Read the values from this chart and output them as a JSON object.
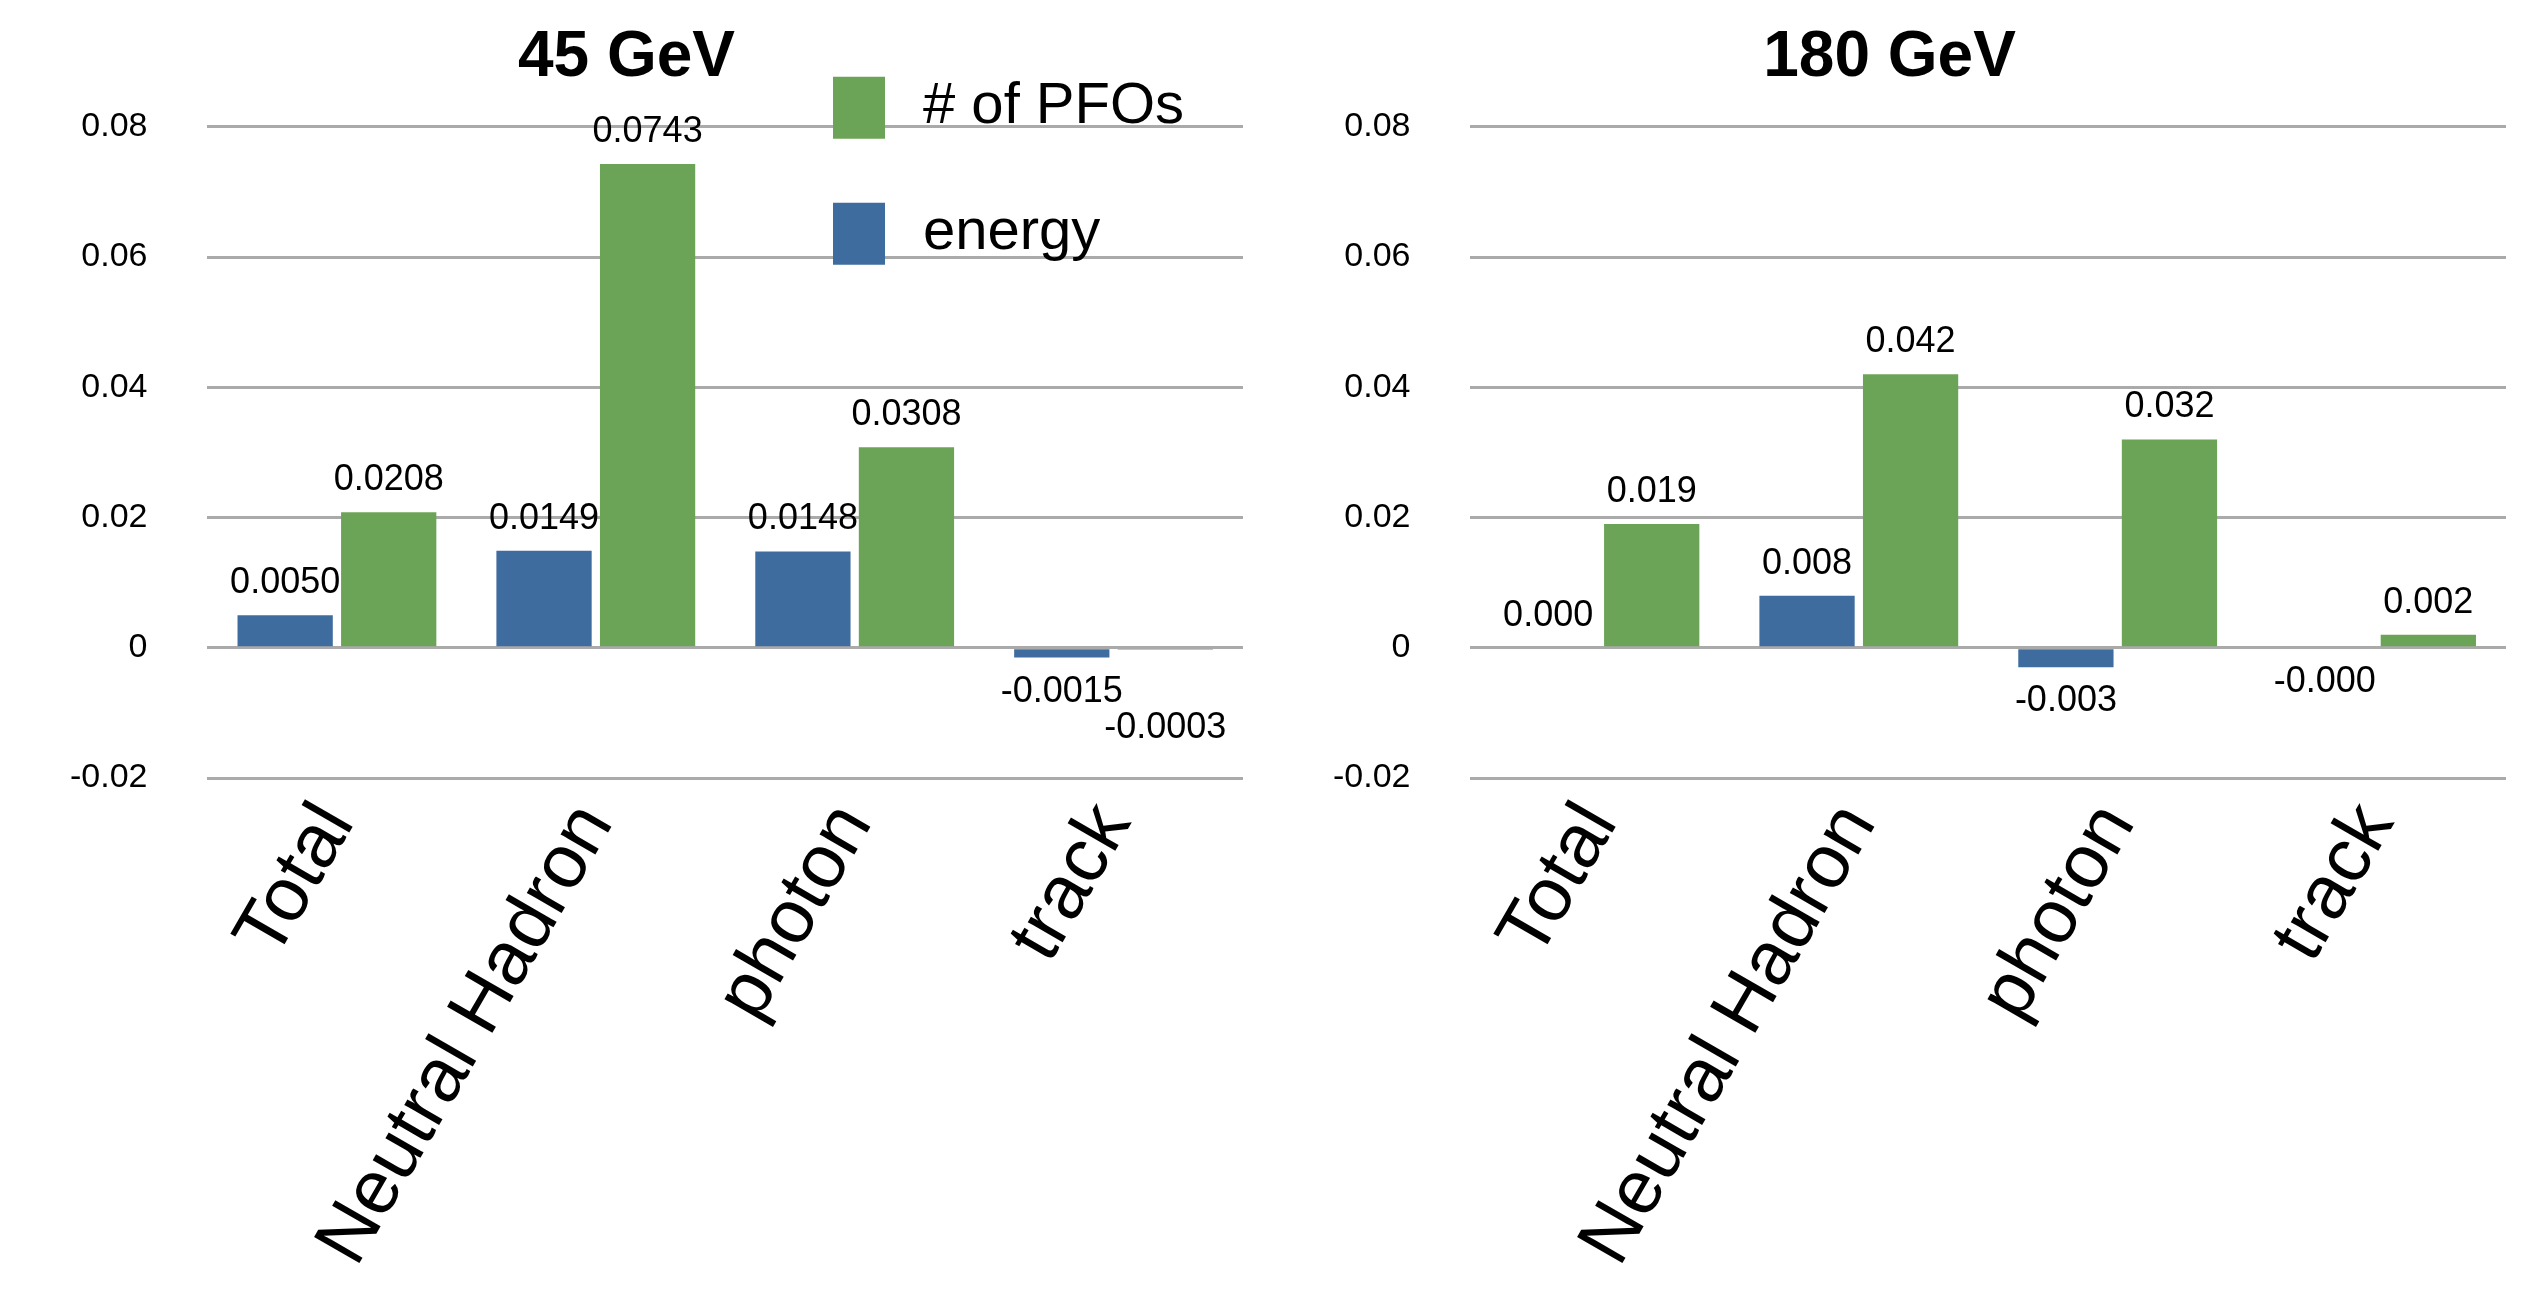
{
  "chart_data": [
    {
      "type": "bar",
      "title": "45 GeV",
      "categories": [
        "Total",
        "Neutral Hadron",
        "photon",
        "track"
      ],
      "ylim": [
        -0.02,
        0.08
      ],
      "yticks": [
        -0.02,
        0,
        0.02,
        0.04,
        0.06,
        0.08
      ],
      "grid": "y",
      "legend": "top right",
      "series": [
        {
          "name": "energy",
          "color": "#3e6c9e",
          "values": [
            0.005,
            0.0149,
            0.0148,
            -0.0015
          ],
          "value_labels": [
            "0.0050",
            "0.0149",
            "0.0148",
            "-0.0015"
          ]
        },
        {
          "name": "# of PFOs",
          "color": "#6ca457",
          "values": [
            0.0208,
            0.0743,
            0.0308,
            -0.0003
          ],
          "value_labels": [
            "0.0208",
            "0.0743",
            "0.0308",
            "-0.0003"
          ]
        }
      ]
    },
    {
      "type": "bar",
      "title": "180 GeV",
      "categories": [
        "Total",
        "Neutral Hadron",
        "photon",
        "track"
      ],
      "ylim": [
        -0.02,
        0.08
      ],
      "yticks": [
        -0.02,
        0,
        0.02,
        0.04,
        0.06,
        0.08
      ],
      "grid": "y",
      "series": [
        {
          "color": "#3e6c9e",
          "values": [
            0,
            0.008,
            -0.003,
            0
          ],
          "value_labels": [
            "0.000",
            "0.008",
            "-0.003",
            "-0.000"
          ]
        },
        {
          "color": "#6ca457",
          "values": [
            0.019,
            0.042,
            0.032,
            0.002
          ],
          "value_labels": [
            "0.019",
            "0.042",
            "0.032",
            "0.002"
          ]
        }
      ]
    }
  ]
}
